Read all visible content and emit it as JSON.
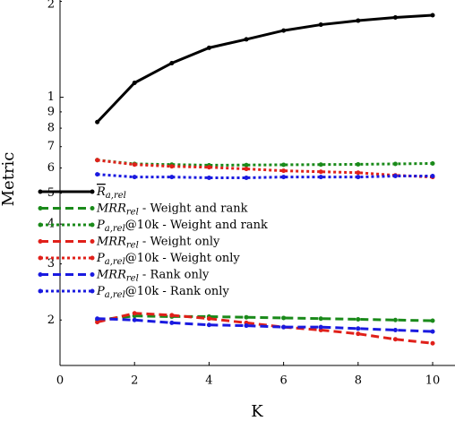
{
  "chart_data": {
    "type": "line",
    "x_label": "K",
    "y_label": "Metric",
    "x": [
      1,
      2,
      3,
      4,
      5,
      6,
      7,
      8,
      9,
      10
    ],
    "xlim": [
      0,
      10.6
    ],
    "xticks": [
      0,
      2,
      4,
      6,
      8,
      10
    ],
    "ylim": [
      0.144,
      2.02
    ],
    "log_y": true,
    "yticks": [
      {
        "value": 2,
        "label": "2"
      },
      1,
      {
        "value": 0.9,
        "label": "9"
      },
      {
        "value": 0.8,
        "label": "8"
      },
      {
        "value": 0.7,
        "label": "7"
      },
      {
        "value": 0.6,
        "label": "6"
      },
      {
        "value": 0.5,
        "label": "5"
      },
      {
        "value": 0.4,
        "label": "4"
      },
      {
        "value": 0.3,
        "label": "3"
      },
      {
        "value": 0.2,
        "label": "2"
      }
    ],
    "legend": "center left",
    "series": [
      {
        "name": "R_a,rel",
        "color": "#000000",
        "style": "solid",
        "values": [
          0.836,
          1.11,
          1.28,
          1.43,
          1.52,
          1.62,
          1.69,
          1.74,
          1.78,
          1.81
        ]
      },
      {
        "name": "MRR_rel - Weight and rank",
        "color": "#1a8a1a",
        "style": "dashed",
        "values": [
          0.2,
          0.206,
          0.205,
          0.205,
          0.204,
          0.203,
          0.202,
          0.201,
          0.2,
          0.199
        ]
      },
      {
        "name": "P_a,rel@10k - Weight and rank",
        "color": "#1a8a1a",
        "style": "dotted",
        "values": [
          0.635,
          0.618,
          0.615,
          0.612,
          0.613,
          0.614,
          0.615,
          0.616,
          0.618,
          0.62
        ]
      },
      {
        "name": "MRR_rel - Weight only",
        "color": "#e0201a",
        "style": "dashed",
        "values": [
          0.197,
          0.21,
          0.207,
          0.202,
          0.196,
          0.19,
          0.186,
          0.181,
          0.174,
          0.169
        ]
      },
      {
        "name": "P_a,rel@10k - Weight only",
        "color": "#e0201a",
        "style": "dotted",
        "values": [
          0.635,
          0.615,
          0.607,
          0.603,
          0.596,
          0.588,
          0.584,
          0.58,
          0.569,
          0.562
        ]
      },
      {
        "name": "MRR_rel - Rank only",
        "color": "#1a1ae0",
        "style": "dashed",
        "values": [
          0.202,
          0.2,
          0.196,
          0.193,
          0.192,
          0.19,
          0.19,
          0.188,
          0.186,
          0.184
        ]
      },
      {
        "name": "P_a,rel@10k - Rank only",
        "color": "#1a1ae0",
        "style": "dotted",
        "values": [
          0.573,
          0.562,
          0.562,
          0.559,
          0.559,
          0.562,
          0.562,
          0.562,
          0.566,
          0.566
        ]
      }
    ]
  }
}
